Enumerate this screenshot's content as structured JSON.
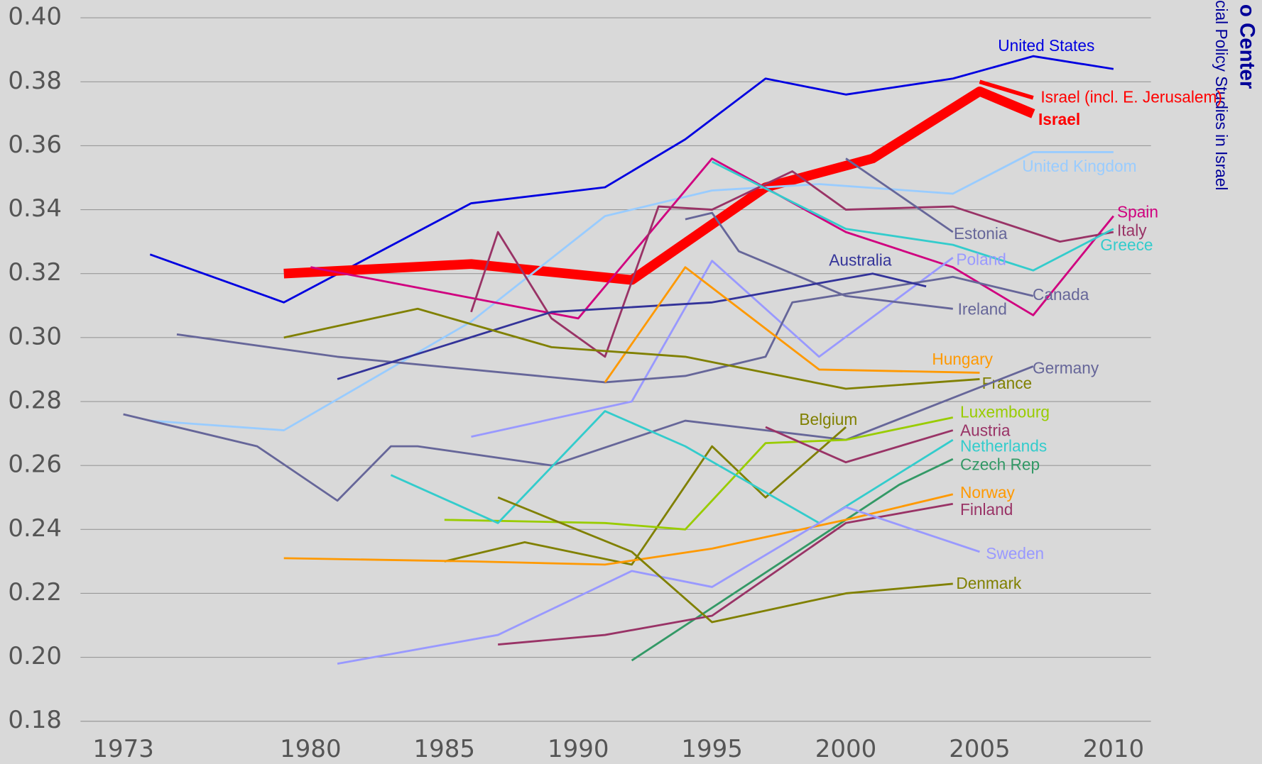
{
  "chart_data": {
    "type": "line",
    "annotations": [
      "o Center",
      "cial Policy Studies in Israel"
    ],
    "xlim": [
      1971.4,
      2011.4
    ],
    "xticks": [
      1973,
      1980,
      1985,
      1990,
      1995,
      2000,
      2005,
      2010
    ],
    "ylim": [
      0.18,
      0.4
    ],
    "yticks": [
      {
        "value": 0.18,
        "label": "0.18"
      },
      {
        "value": 0.2,
        "label": "0.20"
      },
      {
        "value": 0.22,
        "label": "0.22"
      },
      {
        "value": 0.24,
        "label": "0.24"
      },
      {
        "value": 0.26,
        "label": "0.26"
      },
      {
        "value": 0.28,
        "label": "0.28"
      },
      {
        "value": 0.3,
        "label": "0.30"
      },
      {
        "value": 0.32,
        "label": "0.32"
      },
      {
        "value": 0.34,
        "label": "0.34"
      },
      {
        "value": 0.36,
        "label": "0.36"
      },
      {
        "value": 0.38,
        "label": "0.38"
      },
      {
        "value": 0.4,
        "label": "0.40"
      }
    ],
    "grid": true,
    "series": [
      {
        "name": "United States",
        "color": "#0000e0",
        "x": [
          1974,
          1979,
          1986,
          1991,
          1994,
          1997,
          2000,
          2004,
          2007,
          2010
        ],
        "values": [
          0.326,
          0.311,
          0.342,
          0.347,
          0.362,
          0.381,
          0.376,
          0.381,
          0.388,
          0.384
        ]
      },
      {
        "name": "Israel (incl. E. Jerusalem)",
        "color": "#ff0000",
        "x": [
          2005,
          2007
        ],
        "values": [
          0.38,
          0.375
        ]
      },
      {
        "name": "Israel",
        "color": "#ff0000",
        "x": [
          1979,
          1986,
          1992,
          1997,
          2001,
          2005,
          2007
        ],
        "values": [
          0.32,
          0.323,
          0.318,
          0.347,
          0.356,
          0.377,
          0.37
        ]
      },
      {
        "name": "United Kingdom",
        "color": "#99ccff",
        "x": [
          1974,
          1979,
          1986,
          1991,
          1995,
          1999,
          2004,
          2007,
          2010
        ],
        "values": [
          0.274,
          0.271,
          0.305,
          0.338,
          0.346,
          0.348,
          0.345,
          0.358,
          0.358
        ]
      },
      {
        "name": "Spain",
        "color": "#d0007f",
        "x": [
          1980,
          1990,
          1995,
          2000,
          2004,
          2007,
          2010
        ],
        "values": [
          0.322,
          0.306,
          0.356,
          0.333,
          0.322,
          0.307,
          0.338
        ]
      },
      {
        "name": "Italy",
        "color": "#993366",
        "x": [
          1986,
          1987,
          1989,
          1991,
          1993,
          1995,
          1998,
          2000,
          2004,
          2008,
          2010
        ],
        "values": [
          0.308,
          0.333,
          0.306,
          0.294,
          0.341,
          0.34,
          0.352,
          0.34,
          0.341,
          0.33,
          0.333
        ]
      },
      {
        "name": "Greece",
        "color": "#33cccc",
        "x": [
          1995,
          2000,
          2004,
          2007,
          2010
        ],
        "values": [
          0.355,
          0.334,
          0.329,
          0.321,
          0.334
        ]
      },
      {
        "name": "Estonia",
        "color": "#666699",
        "x": [
          2000,
          2004
        ],
        "values": [
          0.356,
          0.333
        ]
      },
      {
        "name": "Poland",
        "color": "#9999ff",
        "x": [
          1986,
          1992,
          1995,
          1999,
          2004
        ],
        "values": [
          0.269,
          0.28,
          0.324,
          0.294,
          0.325
        ]
      },
      {
        "name": "Canada",
        "color": "#666699",
        "x": [
          1975,
          1981,
          1991,
          1994,
          1997,
          1998,
          2004,
          2007
        ],
        "values": [
          0.301,
          0.294,
          0.286,
          0.288,
          0.294,
          0.311,
          0.319,
          0.313
        ]
      },
      {
        "name": "Ireland",
        "color": "#666699",
        "x": [
          1994,
          1995,
          1996,
          2000,
          2004
        ],
        "values": [
          0.337,
          0.339,
          0.327,
          0.313,
          0.309
        ]
      },
      {
        "name": "Australia",
        "color": "#333399",
        "x": [
          1981,
          1989,
          1995,
          2001,
          2003
        ],
        "values": [
          0.287,
          0.308,
          0.311,
          0.32,
          0.316
        ]
      },
      {
        "name": "Hungary",
        "color": "#ff9900",
        "x": [
          1991,
          1994,
          1999,
          2005
        ],
        "values": [
          0.286,
          0.322,
          0.29,
          0.289
        ]
      },
      {
        "name": "France",
        "color": "#808000",
        "x": [
          1979,
          1984,
          1989,
          1994,
          2000,
          2005
        ],
        "values": [
          0.3,
          0.309,
          0.297,
          0.294,
          0.284,
          0.287
        ]
      },
      {
        "name": "Germany",
        "color": "#666699",
        "x": [
          1973,
          1978,
          1981,
          1983,
          1984,
          1989,
          1994,
          2000,
          2007
        ],
        "values": [
          0.276,
          0.266,
          0.249,
          0.266,
          0.266,
          0.26,
          0.274,
          0.268,
          0.291
        ]
      },
      {
        "name": "Belgium",
        "color": "#808000",
        "x": [
          1985,
          1988,
          1992,
          1995,
          1997,
          2000
        ],
        "values": [
          0.23,
          0.236,
          0.229,
          0.266,
          0.25,
          0.272
        ]
      },
      {
        "name": "Luxembourg",
        "color": "#99cc00",
        "x": [
          1985,
          1991,
          1994,
          1997,
          2000,
          2004
        ],
        "values": [
          0.243,
          0.242,
          0.24,
          0.267,
          0.268,
          0.275
        ]
      },
      {
        "name": "Austria",
        "color": "#993366",
        "x": [
          1997,
          2000,
          2004
        ],
        "values": [
          0.272,
          0.261,
          0.271
        ]
      },
      {
        "name": "Netherlands",
        "color": "#33cccc",
        "x": [
          1983,
          1987,
          1991,
          1994,
          1999,
          2004
        ],
        "values": [
          0.257,
          0.242,
          0.277,
          0.266,
          0.242,
          0.268
        ]
      },
      {
        "name": "Czech Rep",
        "color": "#339966",
        "x": [
          1992,
          2002,
          2004
        ],
        "values": [
          0.199,
          0.254,
          0.262
        ]
      },
      {
        "name": "Norway",
        "color": "#ff9900",
        "x": [
          1979,
          1986,
          1991,
          1995,
          2000,
          2004
        ],
        "values": [
          0.231,
          0.23,
          0.229,
          0.234,
          0.243,
          0.251
        ]
      },
      {
        "name": "Finland",
        "color": "#993366",
        "x": [
          1987,
          1991,
          1995,
          2000,
          2004
        ],
        "values": [
          0.204,
          0.207,
          0.213,
          0.242,
          0.248
        ]
      },
      {
        "name": "Sweden",
        "color": "#9999ff",
        "x": [
          1981,
          1987,
          1992,
          1995,
          2000,
          2005
        ],
        "values": [
          0.198,
          0.207,
          0.227,
          0.222,
          0.247,
          0.233
        ]
      },
      {
        "name": "Denmark",
        "color": "#808000",
        "x": [
          1987,
          1992,
          1995,
          2000,
          2004
        ],
        "values": [
          0.25,
          0.233,
          0.211,
          0.22,
          0.223
        ]
      }
    ]
  }
}
